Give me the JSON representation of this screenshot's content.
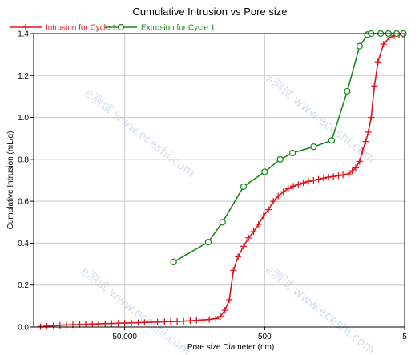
{
  "chart_data": {
    "type": "line",
    "title": "Cumulative Intrusion vs Pore size",
    "xlabel": "Pore size Diameter (nm)",
    "ylabel": "Cumulative Intrusion (mL/g)",
    "xscale": "log",
    "xlim": [
      5,
      1000000
    ],
    "x_reversed": true,
    "ylim": [
      0,
      1.4
    ],
    "x_ticks": [
      50000,
      500,
      5
    ],
    "x_tick_labels": [
      "50,000",
      "500",
      "5"
    ],
    "y_ticks": [
      0.0,
      0.2,
      0.4,
      0.6,
      0.8,
      1.0,
      1.2,
      1.4
    ],
    "y_tick_labels": [
      "0.0",
      "0.2",
      "0.4",
      "0.6",
      "0.8",
      "1.0",
      "1.2",
      "1.4"
    ],
    "grid": true,
    "legend": "top-left",
    "watermarks": [
      "e测试 www.eceshi.com",
      "e测试 www.eceshi.com",
      "e测试 www.eceshi.com",
      "e测试 www.eceshi.com"
    ],
    "series": [
      {
        "name": "Intrusion for Cycle 1",
        "color": "#e0161c",
        "marker": "plus",
        "x": [
          800000,
          650000,
          520000,
          420000,
          340000,
          275000,
          220000,
          180000,
          145000,
          118000,
          95000,
          77000,
          62000,
          50000,
          40000,
          32000,
          26000,
          21000,
          17000,
          13500,
          11000,
          8900,
          7200,
          5800,
          4700,
          3800,
          3100,
          2500,
          2150,
          1850,
          1600,
          1400,
          1200,
          1000,
          850,
          720,
          610,
          520,
          440,
          375,
          320,
          270,
          230,
          195,
          165,
          140,
          118,
          100,
          85,
          72,
          61,
          52,
          44,
          38,
          32,
          28,
          25,
          22,
          20,
          18,
          16.5,
          15,
          13.5,
          12,
          10,
          8.3,
          7,
          6,
          5.3
        ],
        "y": [
          0.002,
          0.004,
          0.006,
          0.008,
          0.01,
          0.011,
          0.012,
          0.013,
          0.014,
          0.015,
          0.016,
          0.017,
          0.018,
          0.019,
          0.02,
          0.021,
          0.022,
          0.023,
          0.024,
          0.025,
          0.026,
          0.027,
          0.028,
          0.03,
          0.032,
          0.034,
          0.036,
          0.04,
          0.05,
          0.08,
          0.13,
          0.27,
          0.335,
          0.385,
          0.425,
          0.455,
          0.49,
          0.53,
          0.56,
          0.6,
          0.625,
          0.645,
          0.66,
          0.672,
          0.68,
          0.688,
          0.695,
          0.7,
          0.705,
          0.71,
          0.715,
          0.718,
          0.722,
          0.726,
          0.73,
          0.745,
          0.76,
          0.79,
          0.84,
          0.885,
          0.93,
          1.0,
          1.15,
          1.265,
          1.35,
          1.38,
          1.39,
          1.393,
          1.395
        ]
      },
      {
        "name": "Extrusion for Cycle 1",
        "color": "#1c8a1c",
        "marker": "circle",
        "x": [
          10000,
          3200,
          2000,
          1000,
          500,
          300,
          200,
          100,
          55,
          33,
          22,
          17,
          15,
          11,
          8.5,
          6.5,
          5.2
        ],
        "y": [
          0.31,
          0.405,
          0.5,
          0.67,
          0.74,
          0.8,
          0.83,
          0.86,
          0.89,
          1.125,
          1.34,
          1.395,
          1.4,
          1.4,
          1.4,
          1.4,
          1.4
        ]
      }
    ]
  }
}
